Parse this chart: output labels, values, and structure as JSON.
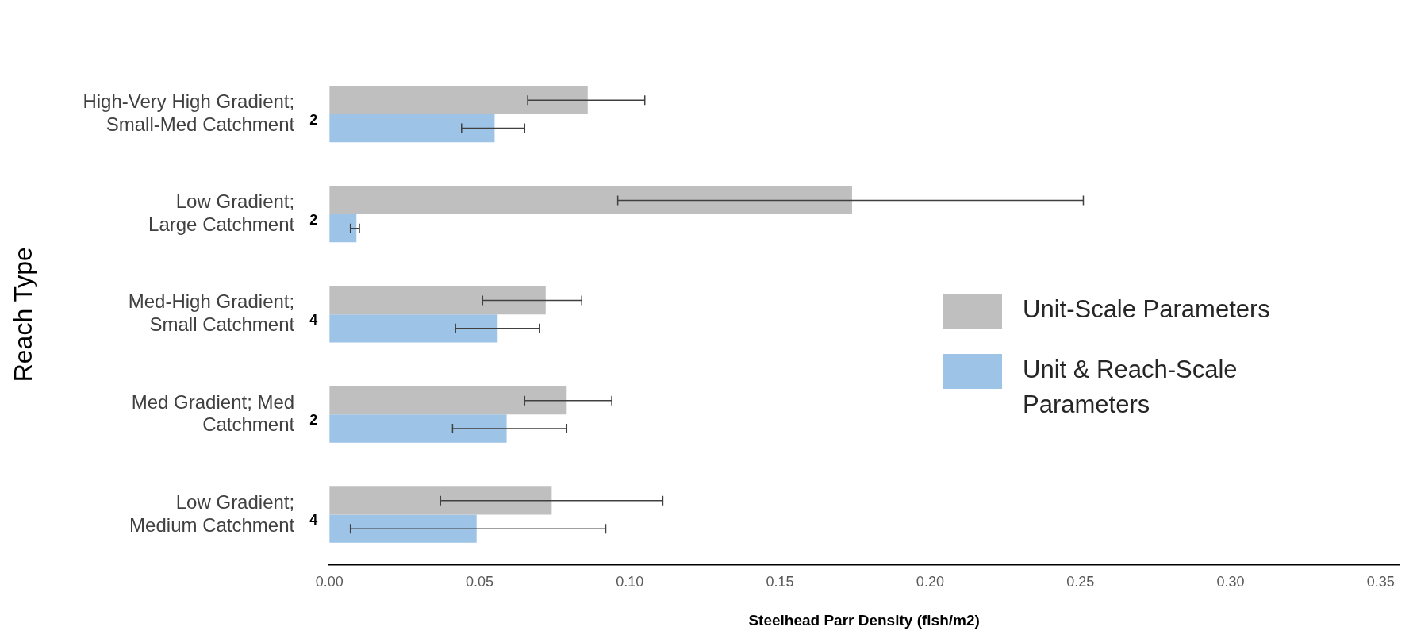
{
  "chart_data": {
    "type": "bar",
    "orientation": "horizontal",
    "ylabel": "Reach Type",
    "xlabel": "Steelhead Parr Density (fish/m2)",
    "categories": [
      "High-Very High Gradient;\nSmall-Med Catchment",
      "Low Gradient;\nLarge Catchment",
      "Med-High Gradient;\nSmall Catchment",
      "Med Gradient; Med\nCatchment",
      "Low Gradient;\nMedium Catchment"
    ],
    "series": [
      {
        "name": "Unit-Scale Parameters",
        "color": "#bfbfbf",
        "values": [
          0.086,
          0.174,
          0.072,
          0.079,
          0.074
        ],
        "errors": [
          [
            0.066,
            0.105
          ],
          [
            0.096,
            0.251
          ],
          [
            0.051,
            0.084
          ],
          [
            0.065,
            0.094
          ],
          [
            0.037,
            0.111
          ]
        ]
      },
      {
        "name": "Unit & Reach-Scale Parameters",
        "color": "#9dc3e6",
        "values": [
          0.055,
          0.009,
          0.056,
          0.059,
          0.049
        ],
        "errors": [
          [
            0.044,
            0.065
          ],
          [
            0.007,
            0.01
          ],
          [
            0.042,
            0.07
          ],
          [
            0.041,
            0.079
          ],
          [
            0.007,
            0.092
          ]
        ]
      }
    ],
    "annotations": [
      "2",
      "2",
      "4",
      "2",
      "4"
    ],
    "xlim": [
      0,
      0.356
    ],
    "xticks": [
      {
        "value": 0,
        "label": "0.00"
      },
      {
        "value": 0.05,
        "label": "0.05"
      },
      {
        "value": 0.1,
        "label": "0.10"
      },
      {
        "value": 0.15,
        "label": "0.15"
      },
      {
        "value": 0.2,
        "label": "0.20"
      },
      {
        "value": 0.25,
        "label": "0.25"
      },
      {
        "value": 0.3,
        "label": "0.30"
      },
      {
        "value": 0.35,
        "label": "0.35"
      }
    ],
    "grid": false,
    "legend": "right"
  }
}
